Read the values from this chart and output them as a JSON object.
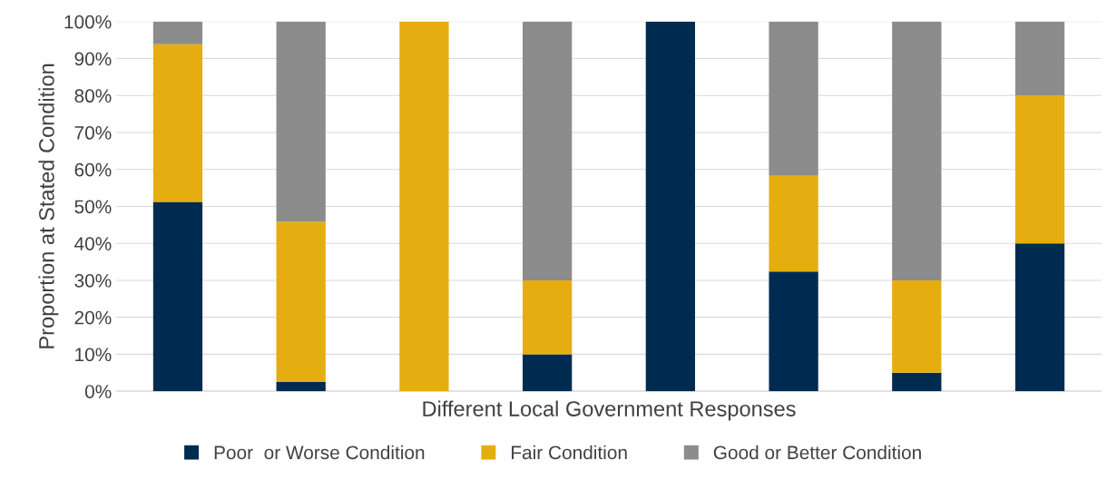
{
  "chart_data": {
    "type": "bar",
    "stacked": true,
    "xlabel": "Different Local Government Responses",
    "ylabel": "Proportion at Stated Condition",
    "categories": [
      null,
      null,
      null,
      null,
      null,
      null,
      null,
      null
    ],
    "series": [
      {
        "name": "Poor  or Worse Condition",
        "color": "#002b50",
        "values": [
          51.2,
          2.5,
          0,
          10,
          100,
          32.4,
          5,
          40
        ]
      },
      {
        "name": "Fair Condition",
        "color": "#e6ad10",
        "values": [
          42.7,
          43.3,
          100,
          20,
          0,
          25.9,
          25,
          40
        ]
      },
      {
        "name": "Good or Better Condition",
        "color": "#8c8c8c",
        "values": [
          6.1,
          54.2,
          0,
          70,
          0,
          41.7,
          70,
          20
        ]
      }
    ],
    "ylim": [
      0,
      100
    ],
    "yticks": [
      {
        "value": 0,
        "label": "0%"
      },
      {
        "value": 10,
        "label": "10%"
      },
      {
        "value": 20,
        "label": "20%"
      },
      {
        "value": 30,
        "label": "30%"
      },
      {
        "value": 40,
        "label": "40%"
      },
      {
        "value": 50,
        "label": "50%"
      },
      {
        "value": 60,
        "label": "60%"
      },
      {
        "value": 70,
        "label": "70%"
      },
      {
        "value": 80,
        "label": "80%"
      },
      {
        "value": 90,
        "label": "90%"
      },
      {
        "value": 100,
        "label": "100%"
      }
    ],
    "grid": "y",
    "legend": "bottom"
  }
}
